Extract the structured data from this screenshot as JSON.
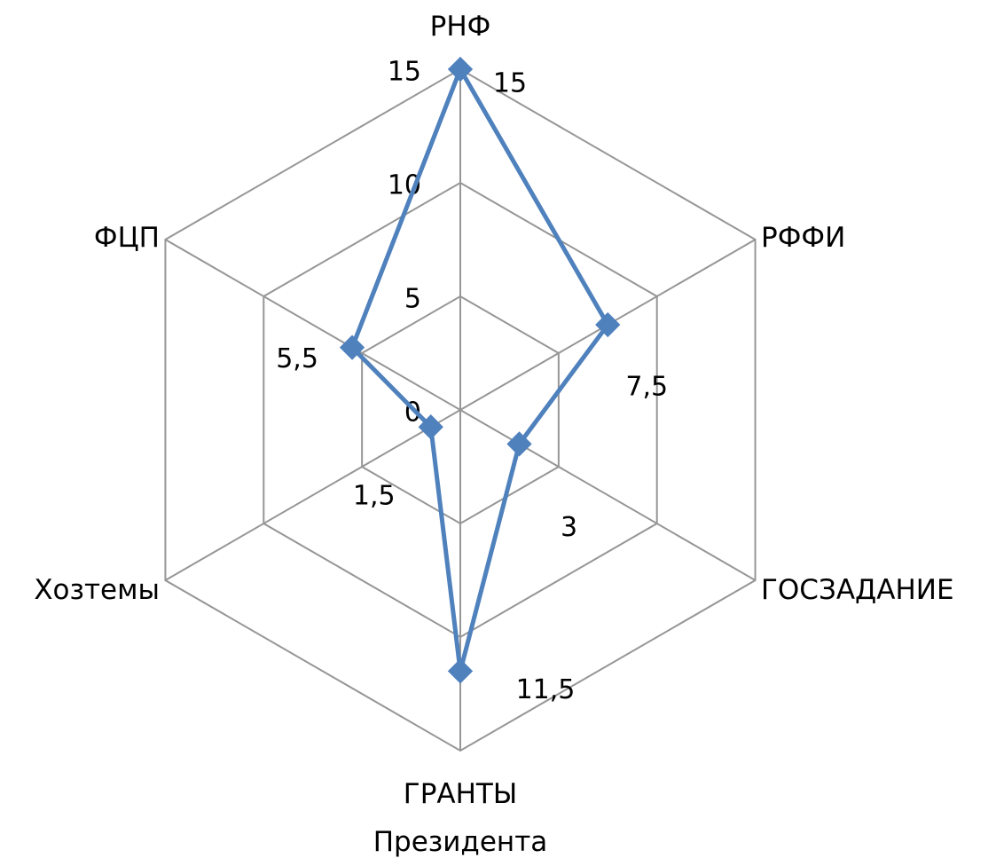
{
  "chart_data": {
    "type": "radar",
    "categories": [
      "РНФ",
      "РФФИ",
      "ГОСЗАДАНИЕ",
      "ГРАНТЫ Президента",
      "Хозтемы",
      "ФЦП"
    ],
    "series": [
      {
        "name": null,
        "color": "#4f81bd",
        "values": [
          15,
          7.5,
          3,
          11.5,
          1.5,
          5.5
        ],
        "value_labels": [
          "15",
          "7,5",
          "3",
          "11,5",
          "1,5",
          "5,5"
        ]
      }
    ],
    "ylim": [
      0,
      15
    ],
    "yticks": [
      0,
      5,
      10,
      15
    ],
    "grid": true
  }
}
